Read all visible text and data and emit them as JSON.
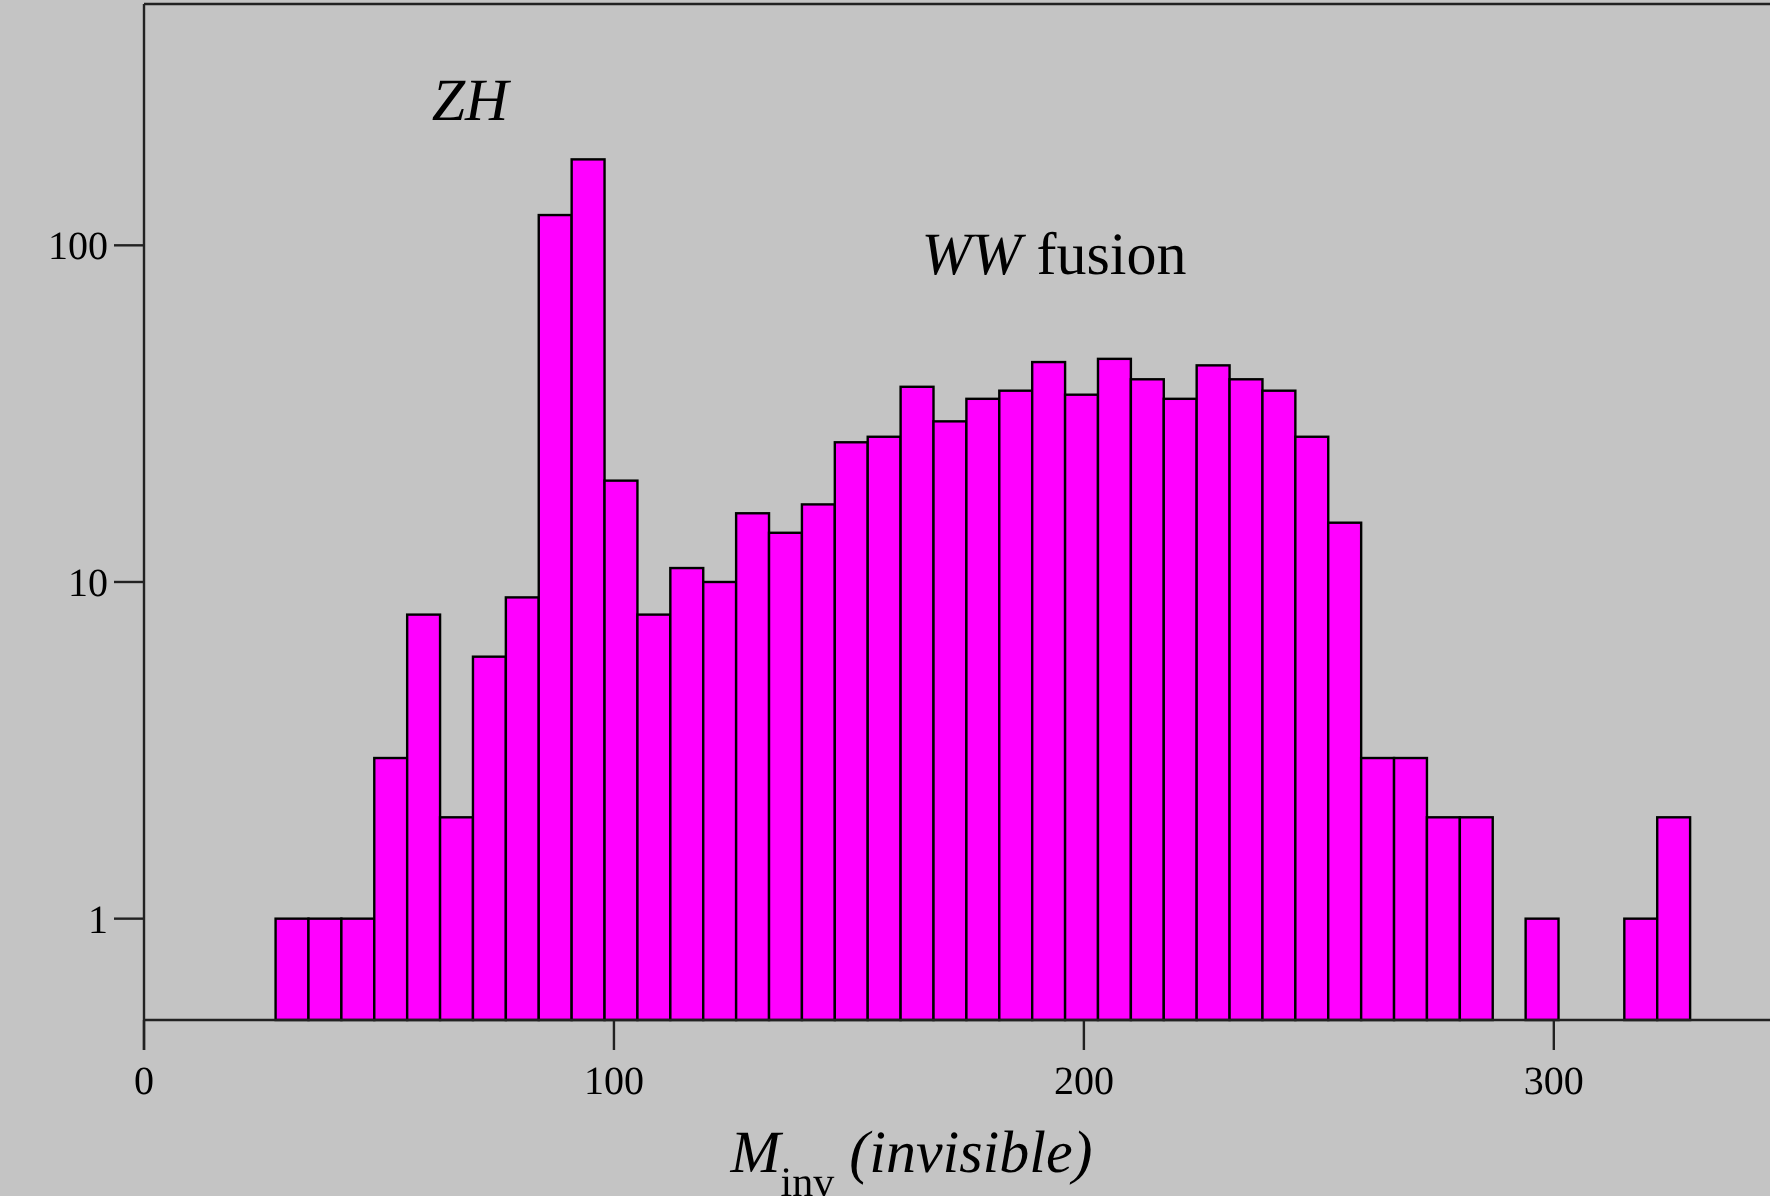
{
  "chart_data": {
    "type": "histogram",
    "xlabel": "M$_{inv}$(invisible)",
    "bins": [
      28,
      35,
      42,
      49,
      56,
      63,
      70,
      77,
      84,
      91,
      98,
      105,
      112,
      119,
      126,
      133,
      140,
      147,
      154,
      161,
      168,
      175,
      182,
      189,
      196,
      203,
      210,
      217,
      224,
      231,
      238,
      245,
      252,
      259,
      266,
      273,
      280,
      287,
      294,
      301,
      308,
      315,
      322,
      329
    ],
    "values": [
      1,
      1,
      1,
      3,
      8,
      2,
      6,
      9,
      123,
      180,
      20,
      8,
      11,
      10,
      16,
      14,
      17,
      26,
      27,
      38,
      30,
      35,
      37,
      45,
      36,
      46,
      40,
      35,
      44,
      40,
      37,
      27,
      15,
      3,
      3,
      2,
      2,
      null,
      1,
      null,
      null,
      1,
      2
    ],
    "color": "#ff00ff",
    "xlim": [
      0,
      346
    ],
    "ylim": [
      0.5,
      500
    ],
    "log": "y",
    "xticks": [
      0,
      100,
      200,
      300
    ],
    "yticks": [
      1,
      10,
      100
    ],
    "annotations": [
      "ZH",
      "WW fusion"
    ]
  }
}
